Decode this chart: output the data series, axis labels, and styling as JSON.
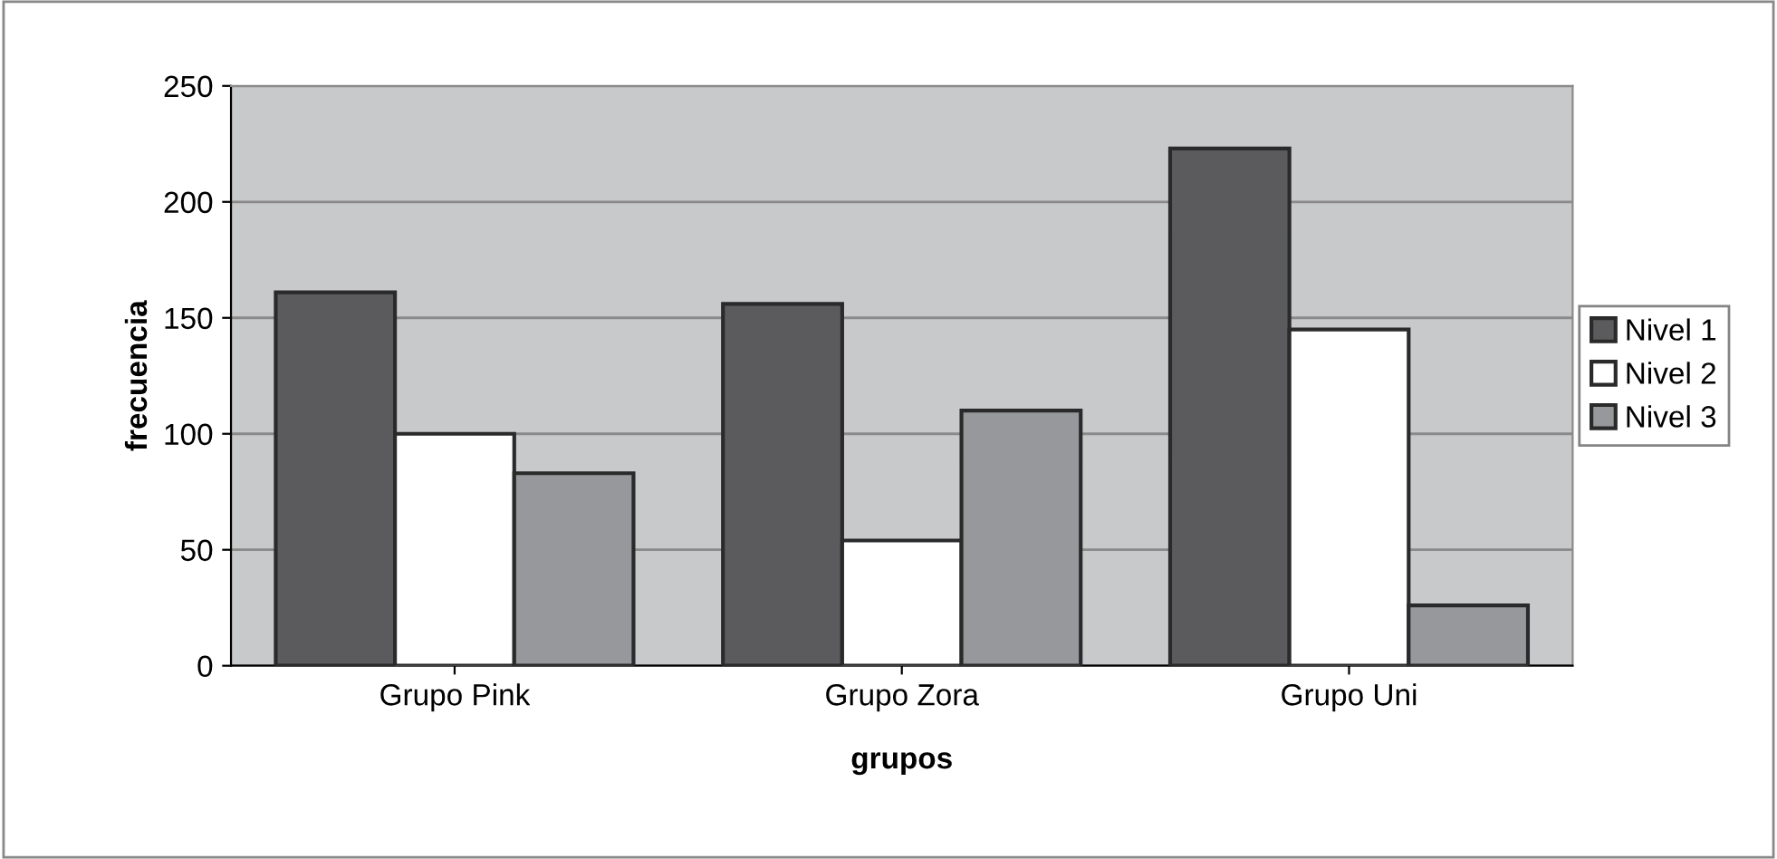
{
  "chart_data": {
    "type": "bar",
    "xlabel": "grupos",
    "ylabel": "frecuencia",
    "categories": [
      "Grupo Pink",
      "Grupo Zora",
      "Grupo Uni"
    ],
    "series": [
      {
        "name": "Nivel 1",
        "color": "#5b5b5d",
        "values": [
          161,
          156,
          223
        ]
      },
      {
        "name": "Nivel 2",
        "color": "#ffffff",
        "values": [
          100,
          54,
          145
        ]
      },
      {
        "name": "Nivel 3",
        "color": "#97989b",
        "values": [
          83,
          110,
          26
        ]
      }
    ],
    "ylim": [
      0,
      250
    ],
    "yticks": [
      0,
      50,
      100,
      150,
      200,
      250
    ],
    "grid": "y",
    "legend": "right"
  }
}
